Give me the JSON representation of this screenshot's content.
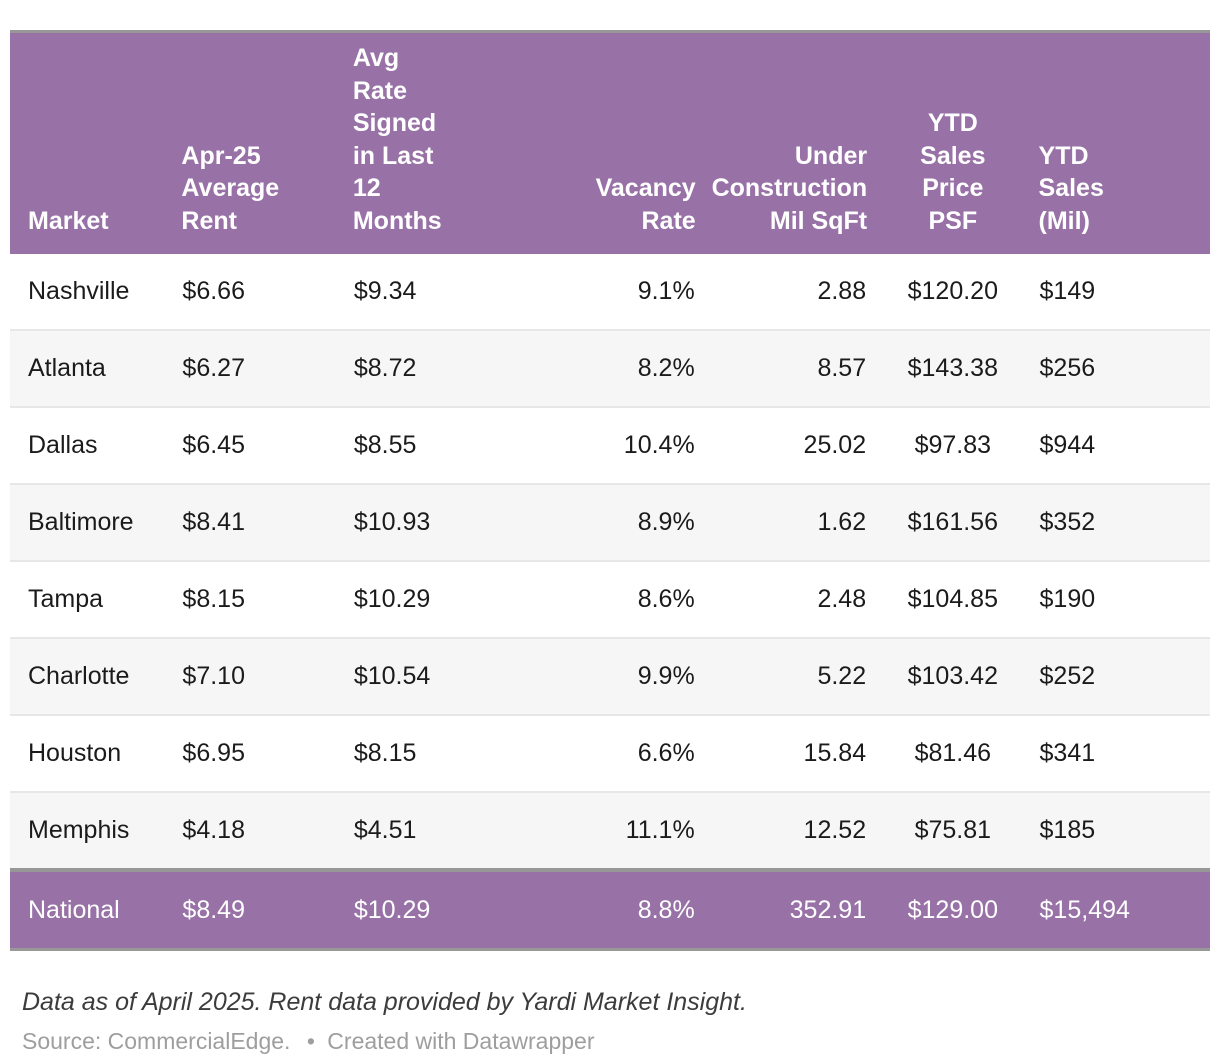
{
  "chart_data": {
    "type": "table",
    "columns": [
      "Market",
      "Apr-25 Average Rent",
      "Avg Rate Signed in Last 12 Months",
      "Vacancy Rate",
      "Under Construction Mil SqFt",
      "YTD Sales Price PSF",
      "YTD Sales (Mil)"
    ],
    "rows": [
      [
        "Nashville",
        "$6.66",
        "$9.34",
        "9.1%",
        "2.88",
        "$120.20",
        "$149"
      ],
      [
        "Atlanta",
        "$6.27",
        "$8.72",
        "8.2%",
        "8.57",
        "$143.38",
        "$256"
      ],
      [
        "Dallas",
        "$6.45",
        "$8.55",
        "10.4%",
        "25.02",
        "$97.83",
        "$944"
      ],
      [
        "Baltimore",
        "$8.41",
        "$10.93",
        "8.9%",
        "1.62",
        "$161.56",
        "$352"
      ],
      [
        "Tampa",
        "$8.15",
        "$10.29",
        "8.6%",
        "2.48",
        "$104.85",
        "$190"
      ],
      [
        "Charlotte",
        "$7.10",
        "$10.54",
        "9.9%",
        "5.22",
        "$103.42",
        "$252"
      ],
      [
        "Houston",
        "$6.95",
        "$8.15",
        "6.6%",
        "15.84",
        "$81.46",
        "$341"
      ],
      [
        "Memphis",
        "$4.18",
        "$4.51",
        "11.1%",
        "12.52",
        "$75.81",
        "$185"
      ],
      [
        "National",
        "$8.49",
        "$10.29",
        "8.8%",
        "352.91",
        "$129.00",
        "$15,494"
      ]
    ],
    "title": "",
    "notes": "Data as of April 2025. Rent data provided by Yardi Market Insight.",
    "source": "Source: CommercialEdge.",
    "layout_hints": "last row is a highlighted summary row; alternating zebra stripes on body rows"
  },
  "table": {
    "columns": [
      "Market",
      "Apr-25\nAverage\nRent",
      "Avg\nRate\nSigned\nin Last\n12\nMonths",
      "Vacancy\nRate",
      "Under\nConstruction\nMil SqFt",
      "YTD\nSales\nPrice\nPSF",
      "YTD\nSales\n(Mil)"
    ],
    "rows": [
      {
        "highlight": false,
        "cells": [
          "Nashville",
          "$6.66",
          "$9.34",
          "9.1%",
          "2.88",
          "$120.20",
          "$149"
        ]
      },
      {
        "highlight": false,
        "cells": [
          "Atlanta",
          "$6.27",
          "$8.72",
          "8.2%",
          "8.57",
          "$143.38",
          "$256"
        ]
      },
      {
        "highlight": false,
        "cells": [
          "Dallas",
          "$6.45",
          "$8.55",
          "10.4%",
          "25.02",
          "$97.83",
          "$944"
        ]
      },
      {
        "highlight": false,
        "cells": [
          "Baltimore",
          "$8.41",
          "$10.93",
          "8.9%",
          "1.62",
          "$161.56",
          "$352"
        ]
      },
      {
        "highlight": false,
        "cells": [
          "Tampa",
          "$8.15",
          "$10.29",
          "8.6%",
          "2.48",
          "$104.85",
          "$190"
        ]
      },
      {
        "highlight": false,
        "cells": [
          "Charlotte",
          "$7.10",
          "$10.54",
          "9.9%",
          "5.22",
          "$103.42",
          "$252"
        ]
      },
      {
        "highlight": false,
        "cells": [
          "Houston",
          "$6.95",
          "$8.15",
          "6.6%",
          "15.84",
          "$81.46",
          "$341"
        ]
      },
      {
        "highlight": false,
        "cells": [
          "Memphis",
          "$4.18",
          "$4.51",
          "11.1%",
          "12.52",
          "$75.81",
          "$185"
        ]
      },
      {
        "highlight": true,
        "cells": [
          "National",
          "$8.49",
          "$10.29",
          "8.8%",
          "352.91",
          "$129.00",
          "$15,494"
        ]
      }
    ]
  },
  "footer": {
    "notes": "Data as of April 2025. Rent data provided by Yardi Market Insight.",
    "source": "Source: CommercialEdge.",
    "separator": "•",
    "attribution": "Created with Datawrapper"
  },
  "colors": {
    "header_background": "#9872a7",
    "highlight_row_background": "#9872a7",
    "zebra_row_background": "#f6f6f6",
    "row_divider": "#e7e7e7",
    "frame_divider": "#989898",
    "body_text": "#1b1b1b",
    "header_text": "#ffffff",
    "source_text": "#9e9e9e"
  }
}
